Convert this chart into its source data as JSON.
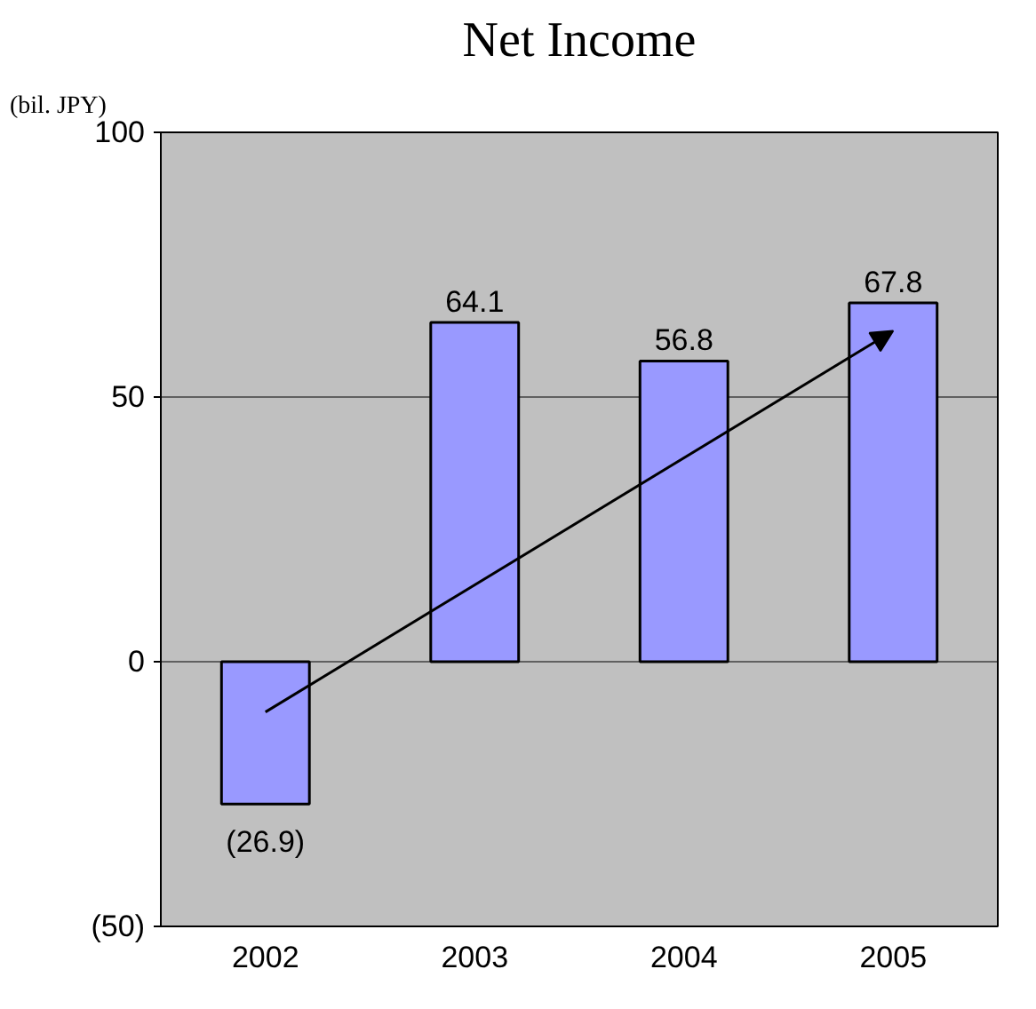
{
  "chart_data": {
    "type": "bar",
    "title": "Net Income",
    "ylabel": "(bil. JPY)",
    "categories": [
      "2002",
      "2003",
      "2004",
      "2005"
    ],
    "values": [
      -26.9,
      64.1,
      56.8,
      67.8
    ],
    "value_labels": [
      "(26.9)",
      "64.1",
      "56.8",
      "67.8"
    ],
    "color": "#9999ff",
    "ylim": [
      -50,
      100
    ],
    "yticks": [
      {
        "value": -50,
        "label": "(50)"
      },
      0,
      50,
      100
    ],
    "grid": "y"
  }
}
